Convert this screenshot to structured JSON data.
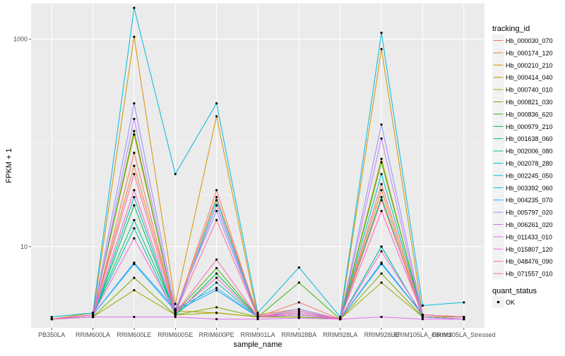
{
  "chart_data": {
    "type": "line",
    "xlabel": "sample_name",
    "ylabel": "FPKM + 1",
    "y_scale": "log10",
    "ylim": [
      1.65,
      2200
    ],
    "y_ticks": [
      10,
      1000
    ],
    "y_tick_labels": [
      "10",
      "1000"
    ],
    "grid": true,
    "legend_position": "right",
    "categories": [
      "PB350LA",
      "RRIM600LA",
      "RRIM600LE",
      "RRIM600SE",
      "RRIM600PE",
      "RRIM901LA",
      "RRIM928BA",
      "RRIM928LA",
      "RRIM928LE",
      "RRIM105LA_Control",
      "RRIM105LA_Stressed"
    ],
    "legend_title": "tracking_id",
    "series": [
      {
        "name": "Hb_000030_070",
        "color": "#F8766D",
        "values": [
          2,
          2.1,
          80,
          2.3,
          35,
          2.1,
          2.9,
          2,
          40,
          2.2,
          2.1
        ]
      },
      {
        "name": "Hb_000174_120",
        "color": "#EA8331",
        "values": [
          2,
          2.2,
          60,
          2.4,
          30,
          2.2,
          2.5,
          2,
          35,
          2.1,
          2
        ]
      },
      {
        "name": "Hb_000210_210",
        "color": "#D89000",
        "values": [
          2,
          2.2,
          1050,
          2.8,
          180,
          2.1,
          2.2,
          2,
          800,
          2.2,
          2.1
        ]
      },
      {
        "name": "Hb_000414_040",
        "color": "#C09B00",
        "values": [
          2,
          2.3,
          120,
          2.4,
          2.3,
          2.1,
          2.2,
          2,
          70,
          2.1,
          2.1
        ]
      },
      {
        "name": "Hb_000740_010",
        "color": "#A3A500",
        "values": [
          2,
          2.1,
          3.8,
          2.2,
          2.3,
          2.1,
          2.1,
          2,
          4.5,
          2.1,
          2.1
        ]
      },
      {
        "name": "Hb_000821_030",
        "color": "#7CAE00",
        "values": [
          2,
          2.1,
          5,
          2.2,
          2.6,
          2.1,
          2.1,
          2,
          5.5,
          2.1,
          2
        ]
      },
      {
        "name": "Hb_000836_620",
        "color": "#39B600",
        "values": [
          2,
          2.2,
          130,
          2.3,
          6.2,
          2.1,
          4.5,
          2,
          65,
          2.2,
          2.1
        ]
      },
      {
        "name": "Hb_000979_210",
        "color": "#00BB4E",
        "values": [
          2,
          2.1,
          25,
          2.2,
          5.5,
          2.1,
          2.2,
          2,
          30,
          2.1,
          2
        ]
      },
      {
        "name": "Hb_001638_060",
        "color": "#00BF7D",
        "values": [
          2,
          2.2,
          18,
          2.3,
          25,
          2.1,
          2.3,
          2,
          10,
          2.1,
          2
        ]
      },
      {
        "name": "Hb_002006_080",
        "color": "#00C1A3",
        "values": [
          2,
          2.2,
          15,
          2.2,
          4.5,
          2.1,
          2.2,
          2,
          10,
          2.1,
          2
        ]
      },
      {
        "name": "Hb_002078_280",
        "color": "#00BFC4",
        "values": [
          2,
          2.1,
          30,
          2.2,
          28,
          2.1,
          2.2,
          2,
          50,
          2.2,
          2.1
        ]
      },
      {
        "name": "Hb_002245_050",
        "color": "#00BAE0",
        "values": [
          2.1,
          2.3,
          2000,
          50,
          240,
          2.3,
          6.3,
          2.1,
          1150,
          2.7,
          2.9
        ]
      },
      {
        "name": "Hb_003392_060",
        "color": "#00B0F6",
        "values": [
          2,
          2.2,
          6.8,
          2.4,
          3.8,
          2.1,
          2.3,
          2,
          6.8,
          2.2,
          2.1
        ]
      },
      {
        "name": "Hb_004235_070",
        "color": "#35A2FF",
        "values": [
          2,
          2.2,
          7,
          2.5,
          4,
          2.1,
          2.4,
          2,
          7,
          2.2,
          2.1
        ]
      },
      {
        "name": "Hb_005797_020",
        "color": "#9590FF",
        "values": [
          2,
          2.2,
          240,
          2.5,
          22,
          2.1,
          2.5,
          2,
          150,
          2.2,
          2.1
        ]
      },
      {
        "name": "Hb_006261_020",
        "color": "#C77CFF",
        "values": [
          2,
          2.1,
          170,
          2.3,
          25,
          2.1,
          2.3,
          2,
          110,
          2.1,
          2
        ]
      },
      {
        "name": "Hb_011433_010",
        "color": "#E76BF3",
        "values": [
          2,
          2.1,
          2.1,
          2.1,
          2,
          2,
          2.05,
          2,
          2.1,
          2,
          2
        ]
      },
      {
        "name": "Hb_015807_120",
        "color": "#FA62DB",
        "values": [
          2,
          2.2,
          12,
          2.3,
          5,
          2.1,
          2.2,
          2,
          9,
          2.2,
          2.1
        ]
      },
      {
        "name": "Hb_048476_090",
        "color": "#FF62BC",
        "values": [
          2,
          2.2,
          35,
          2.3,
          7.5,
          2.1,
          2.3,
          2,
          22,
          2.2,
          2.1
        ]
      },
      {
        "name": "Hb_071557_010",
        "color": "#FF6C91",
        "values": [
          2,
          2.2,
          50,
          2.3,
          18,
          2.1,
          2.4,
          2,
          28,
          2.2,
          2.1
        ]
      }
    ],
    "shape_legend": {
      "title": "quant_status",
      "label": "OK"
    }
  }
}
